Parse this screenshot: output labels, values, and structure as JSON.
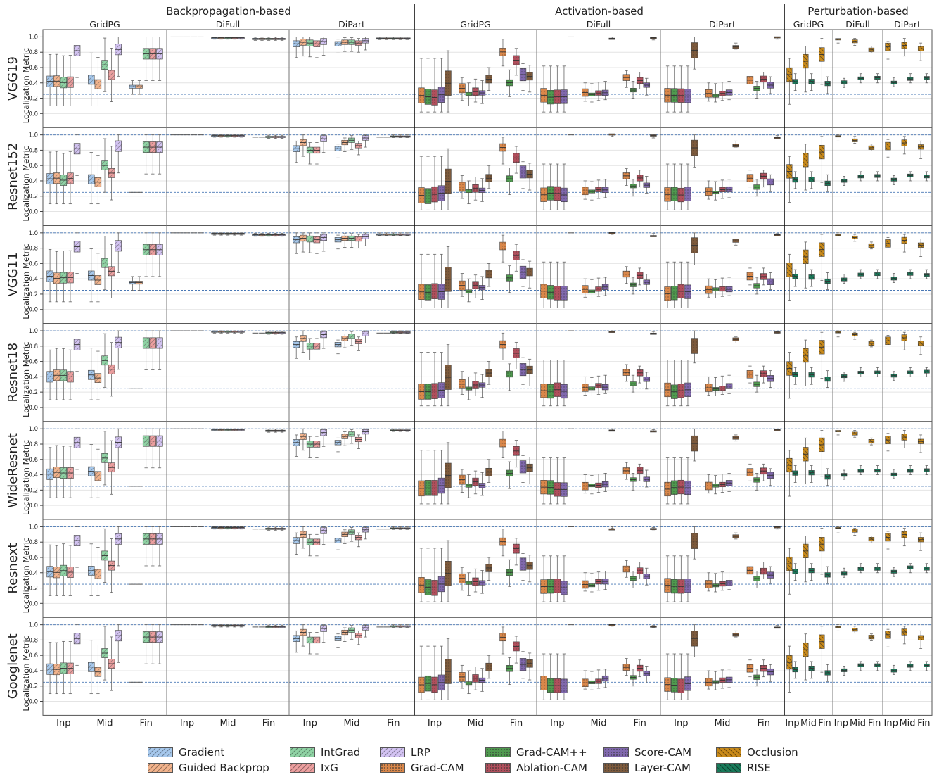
{
  "figure": {
    "groups": [
      "Backpropagation-based",
      "Activation-based",
      "Perturbation-based"
    ],
    "settings": [
      "GridPG",
      "DiFull",
      "DiPart"
    ],
    "models": [
      "VGG19",
      "Resnet152",
      "VGG11",
      "Resnet18",
      "WideResnet",
      "Resnext",
      "Googlenet"
    ],
    "layers": [
      "Inp",
      "Mid",
      "Fin"
    ],
    "ylabel": "Localization Metric",
    "yticks": [
      "0.0",
      "0.2",
      "0.4",
      "0.6",
      "0.8",
      "1.0"
    ],
    "reference_lines": [
      0.25,
      1.0
    ]
  },
  "legend": [
    {
      "name": "Gradient",
      "color": "#a6c8ec",
      "hatch": "diag"
    },
    {
      "name": "Guided Backprop",
      "color": "#f2b38c",
      "hatch": "diag"
    },
    {
      "name": "IntGrad",
      "color": "#8fd3a4",
      "hatch": "diag"
    },
    {
      "name": "IxG",
      "color": "#ec9f9f",
      "hatch": "diag"
    },
    {
      "name": "LRP",
      "color": "#d3c3f2",
      "hatch": "diag"
    },
    {
      "name": "Grad-CAM",
      "color": "#d9874a",
      "hatch": "dots"
    },
    {
      "name": "Grad-CAM++",
      "color": "#4f9a4f",
      "hatch": "dots"
    },
    {
      "name": "Ablation-CAM",
      "color": "#b04f5c",
      "hatch": "dots"
    },
    {
      "name": "Score-CAM",
      "color": "#8068ad",
      "hatch": "dots"
    },
    {
      "name": "Layer-CAM",
      "color": "#7d5a3c",
      "hatch": "dots"
    },
    {
      "name": "Occlusion",
      "color": "#c98a1a",
      "hatch": "back"
    },
    {
      "name": "RISE",
      "color": "#197a5a",
      "hatch": "back"
    }
  ],
  "chart_data": {
    "type": "box",
    "description_units": "Localization Metric (0 to 1)",
    "ylim": [
      -0.1,
      1.05
    ],
    "grid": true,
    "legend_placement": "bottom",
    "facets": {
      "rows": "models",
      "columns": "group x setting",
      "x_categories": [
        "Inp",
        "Mid",
        "Fin"
      ]
    },
    "median_estimates": {
      "VGG19": {
        "Backpropagation-based": {
          "GridPG": {
            "Inp": {
              "Gradient": 0.43,
              "Guided Backprop": 0.38,
              "IntGrad": 0.43,
              "IxG": 0.44,
              "LRP": 0.8
            },
            "Mid": {
              "Gradient": 0.45,
              "Guided Backprop": 0.38,
              "IntGrad": 0.62,
              "IxG": 0.6,
              "LRP": 0.8
            },
            "Fin": {
              "Gradient": 0.36,
              "Guided Backprop": 0.35,
              "IntGrad": 0.76,
              "IxG": 0.76,
              "LRP": 0.76
            }
          },
          "DiFull": {
            "Mid": {
              "Gradient": 0.99,
              "Guided Backprop": 0.99,
              "IntGrad": 0.99,
              "IxG": 0.99,
              "LRP": 0.99
            },
            "Fin": {
              "Gradient": 0.98,
              "Guided Backprop": 0.98,
              "IntGrad": 0.98,
              "IxG": 0.98,
              "LRP": 0.98
            }
          },
          "DiPart": {
            "Inp": {
              "Gradient": 0.91,
              "Guided Backprop": 0.93,
              "IntGrad": 0.91,
              "IxG": 0.91,
              "LRP": 0.94
            },
            "Mid": {
              "Gradient": 0.91,
              "Guided Backprop": 0.93,
              "IntGrad": 0.93,
              "IxG": 0.92,
              "LRP": 0.95
            },
            "Fin": {
              "Gradient": 0.98,
              "Guided Backprop": 0.98,
              "IntGrad": 0.99,
              "IxG": 0.99,
              "LRP": 0.99
            }
          }
        },
        "Activation-based": {
          "GridPG": {
            "Inp": {
              "Grad-CAM": 0.22,
              "Grad-CAM++": 0.22,
              "Ablation-CAM": 0.22,
              "Score-CAM": 0.24,
              "Layer-CAM": 0.4
            },
            "Mid": {
              "Grad-CAM": 0.37,
              "Grad-CAM++": 0.25,
              "Ablation-CAM": 0.35,
              "Score-CAM": 0.3,
              "Layer-CAM": 0.45
            },
            "Fin": {
              "Grad-CAM": 0.79,
              "Grad-CAM++": 0.42,
              "Ablation-CAM": 0.72,
              "Score-CAM": 0.55,
              "Layer-CAM": 0.5
            }
          }
        },
        "Perturbation-based": {
          "GridPG": {
            "Inp": {
              "Occlusion": 0.58,
              "RISE": 0.44
            },
            "Mid": {
              "Occlusion": 0.75,
              "RISE": 0.44
            },
            "Fin": {
              "Occlusion": 0.8,
              "RISE": 0.4
            }
          },
          "DiFull": {
            "Inp": {
              "Occlusion": 0.98,
              "RISE": 0.4
            },
            "Mid": {
              "Occlusion": 0.94,
              "RISE": 0.4
            },
            "Fin": {
              "Occlusion": 0.88,
              "RISE": 0.44
            }
          },
          "DiPart": {
            "Inp": {
              "Occlusion": 0.96,
              "RISE": 0.41
            },
            "Mid": {
              "Occlusion": 0.94,
              "RISE": 0.41
            },
            "Fin": {
              "Occlusion": 0.91,
              "RISE": 0.44
            }
          }
        }
      }
    }
  }
}
